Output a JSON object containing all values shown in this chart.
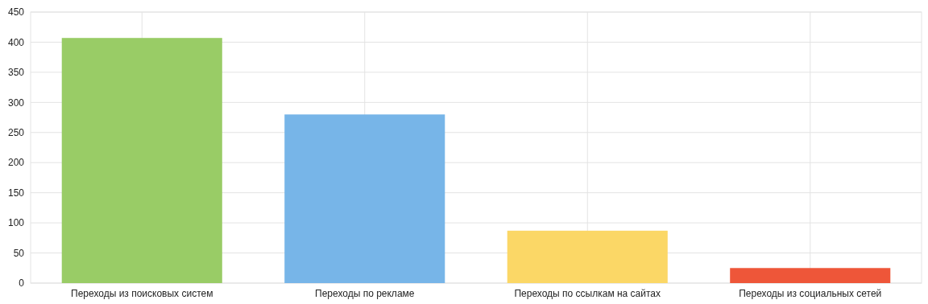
{
  "chart_data": {
    "type": "bar",
    "categories": [
      "Переходы из поисковых систем",
      "Переходы по рекламе",
      "Переходы по ссылкам на сайтах",
      "Переходы из социальных сетей"
    ],
    "values": [
      407,
      280,
      87,
      25
    ],
    "colors": [
      "#99cc66",
      "#77b5e8",
      "#fbd766",
      "#ee5639"
    ],
    "ylim": [
      0,
      450
    ],
    "yticks": [
      0,
      50,
      100,
      150,
      200,
      250,
      300,
      350,
      400,
      450
    ],
    "grid": true
  }
}
